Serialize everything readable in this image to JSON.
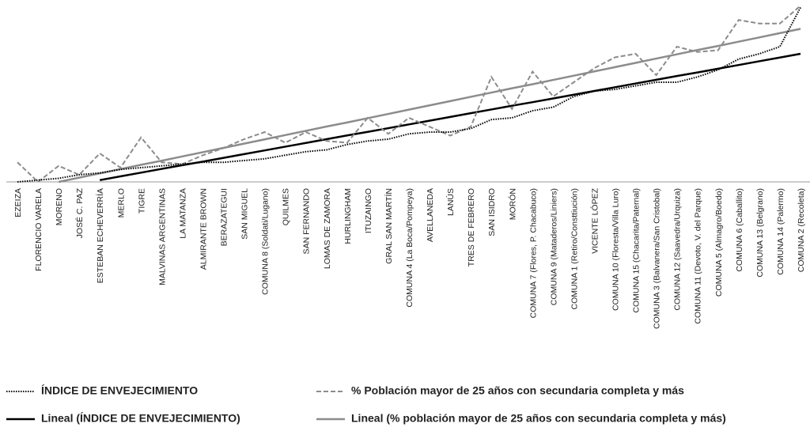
{
  "chart_data": {
    "type": "line",
    "categories": [
      "EZEIZA",
      "FLORENCIO VARELA",
      "MORENO",
      "JOSÉ C. PAZ",
      "ESTEBAN ECHEVERRÍA",
      "MERLO",
      "TIGRE",
      "MALVINAS ARGENTINAS",
      "LA MATANZA",
      "ALMIRANTE BROWN",
      "BERAZATEGUI",
      "SAN MIGUEL",
      "COMUNA 8 (Soldati/Lugano)",
      "QUILMES",
      "SAN FERNANDO",
      "LOMAS DE ZAMORA",
      "HURLINGHAM",
      "ITUZAINGO",
      "GRAL SAN MARTÍN",
      "COMUNA 4 (La Boca/Pompeya)",
      "AVELLANEDA",
      "LANÚS",
      "TRES DE FEBRERO",
      "SAN ISIDRO",
      "MORÓN",
      "COMUNA 7 (Flores, P. Chacabuco)",
      "COMUNA 9 (Mataderos/Liniers)",
      "COMUNA 1 (Retiro/Consttiución)",
      "VICENTE LÓPEZ",
      "COMUNA 10 (Floresta/Villa Luro)",
      "COMUNA 15 (Chacarita/Paternal)",
      "COMUNA 3 (Balvanera/San Cristobal)",
      "COMUNA 12 (Saavedra/Urquiza)",
      "COMUNA 11 (Devoto, V. del Parque)",
      "COMUNA 5 (Almagro/Boedo)",
      "COMUNA 6 (Caballito)",
      "COMUNA 13 (Belgrano)",
      "COMUNA 14 (Palermo)",
      "COMUNA 2 (Recoleta)"
    ],
    "series": [
      {
        "name": "ÍNDICE DE ENVEJECIMIENTO",
        "color": "#000000",
        "dash": "dotted",
        "values": [
          0,
          1,
          2,
          4,
          5,
          7,
          8,
          9,
          10,
          11,
          11,
          12,
          13,
          15,
          17,
          18,
          21,
          23,
          24,
          27,
          28,
          28,
          30,
          35,
          36,
          40,
          42,
          48,
          51,
          52,
          54,
          56,
          56,
          59,
          63,
          69,
          72,
          76,
          98
        ]
      },
      {
        "name": "% Población mayor de 25 años con secundaria completa y más",
        "color": "#8c8c8c",
        "dash": "dashed",
        "values": [
          11,
          0,
          9,
          4,
          16,
          8,
          25,
          11,
          10,
          15,
          19,
          24,
          28,
          22,
          28,
          23,
          22,
          36,
          27,
          36,
          31,
          26,
          31,
          59,
          41,
          62,
          48,
          56,
          64,
          70,
          72,
          60,
          76,
          73,
          74,
          91,
          89,
          89,
          99
        ]
      },
      {
        "name": "Lineal (ÍNDICE DE ENVEJECIMIENTO)",
        "color": "#000000",
        "dash": "solid",
        "values": [
          null,
          null,
          null,
          null,
          1.0,
          3.1,
          5.2,
          7.3,
          9.4,
          11.4,
          13.5,
          15.6,
          17.7,
          19.8,
          21.9,
          24.0,
          26.1,
          28.1,
          30.2,
          32.3,
          34.4,
          36.5,
          38.6,
          40.7,
          42.8,
          44.8,
          46.9,
          49.0,
          51.1,
          53.2,
          55.3,
          57.4,
          59.5,
          61.5,
          63.6,
          65.7,
          67.8,
          69.9,
          72.0
        ]
      },
      {
        "name": "Lineal (% población mayor de 25 años con secundaria completa y más)",
        "color": "#8c8c8c",
        "dash": "solid",
        "values": [
          null,
          null,
          0,
          2.4,
          4.8,
          7.2,
          9.6,
          11.9,
          14.3,
          16.7,
          19.1,
          21.5,
          23.9,
          26.3,
          28.7,
          31.1,
          33.4,
          35.8,
          38.2,
          40.6,
          43.0,
          45.4,
          47.8,
          50.2,
          52.6,
          54.9,
          57.3,
          59.7,
          62.1,
          64.5,
          66.9,
          69.3,
          71.7,
          74.1,
          76.4,
          78.8,
          81.2,
          83.6,
          86.0
        ]
      }
    ],
    "ylim": [
      0,
      100
    ],
    "grid": false
  }
}
